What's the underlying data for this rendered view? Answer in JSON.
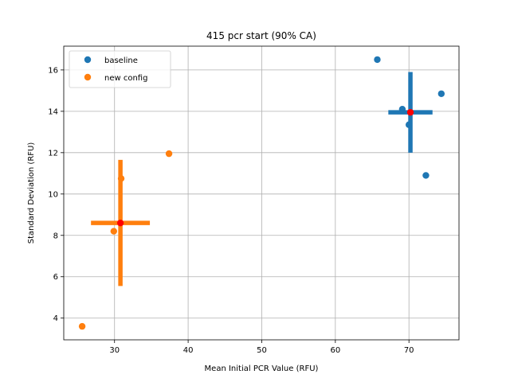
{
  "chart_data": {
    "type": "scatter",
    "title": "415 pcr start (90% CA)",
    "xlabel": "Mean Initial PCR Value (RFU)",
    "ylabel": "Standard Deviation (RFU)",
    "xlim": [
      23.1,
      76.8
    ],
    "ylim": [
      2.95,
      17.15
    ],
    "xticks": [
      30,
      40,
      50,
      60,
      70
    ],
    "yticks": [
      4,
      6,
      8,
      10,
      12,
      14,
      16
    ],
    "grid": true,
    "legend_position": "upper-left",
    "series": [
      {
        "name": "baseline",
        "color": "#1f77b4",
        "points": [
          {
            "x": 65.7,
            "y": 16.5
          },
          {
            "x": 69.1,
            "y": 14.1
          },
          {
            "x": 74.4,
            "y": 14.85
          },
          {
            "x": 70.0,
            "y": 13.35
          },
          {
            "x": 72.3,
            "y": 10.9
          }
        ],
        "center": {
          "x": 70.2,
          "y": 13.95
        },
        "xerr": 3.0,
        "yerr": 1.95
      },
      {
        "name": "new config",
        "color": "#ff7f0e",
        "points": [
          {
            "x": 37.4,
            "y": 11.95
          },
          {
            "x": 30.9,
            "y": 10.75
          },
          {
            "x": 29.9,
            "y": 8.2
          },
          {
            "x": 25.6,
            "y": 3.6
          }
        ],
        "center": {
          "x": 30.8,
          "y": 8.6
        },
        "xerr": 4.0,
        "yerr": 3.05
      }
    ],
    "center_marker_color": "#ff0000"
  }
}
